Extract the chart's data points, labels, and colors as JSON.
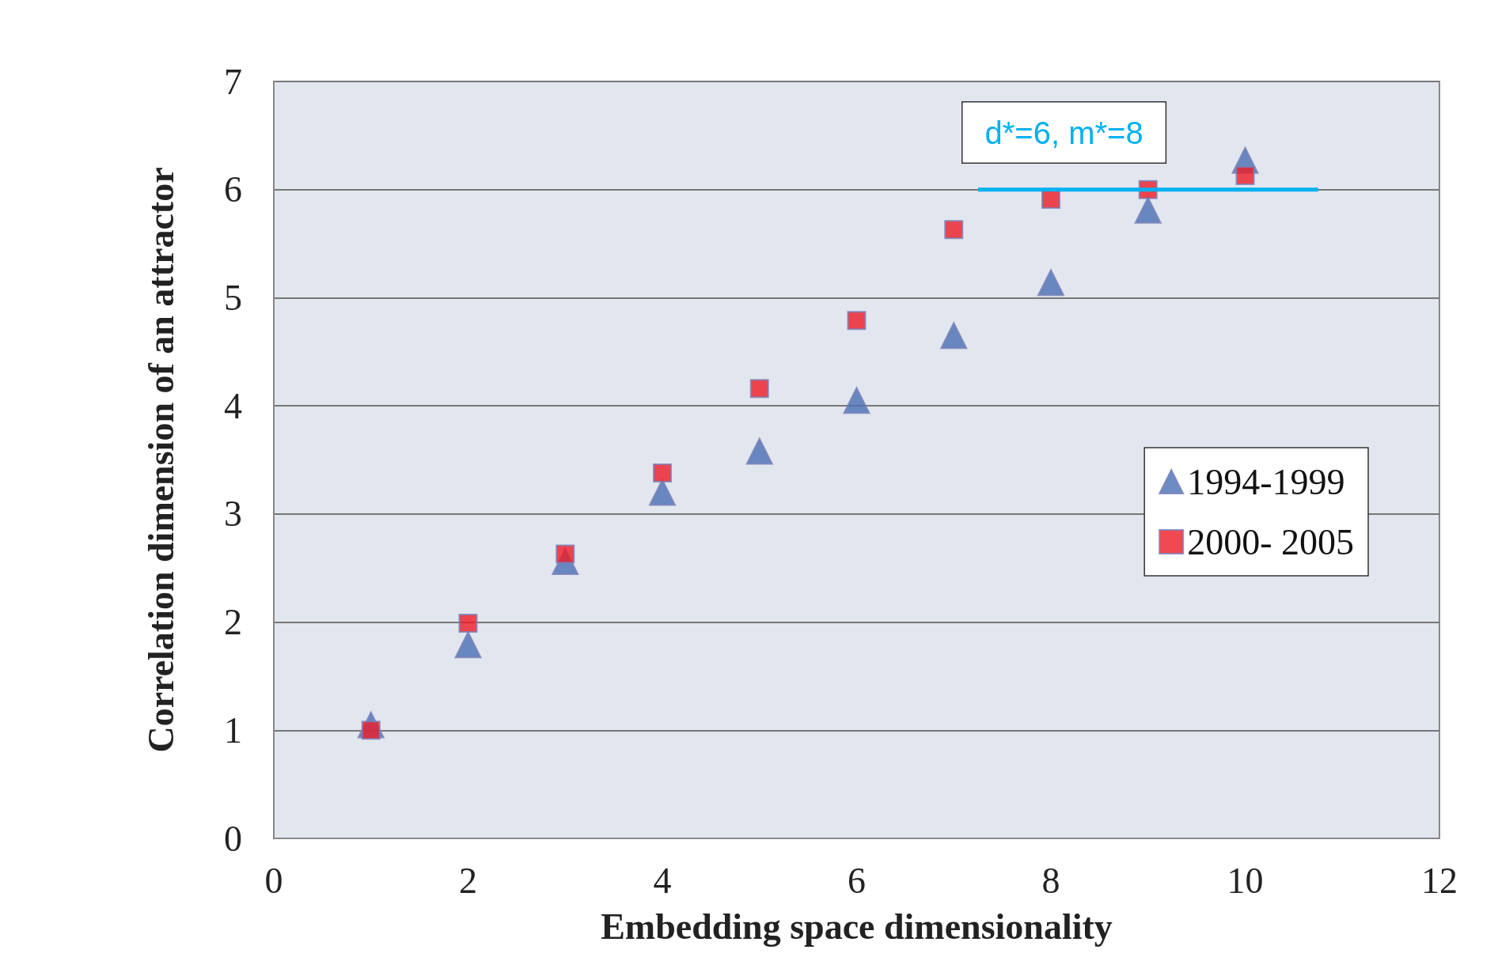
{
  "chart_data": {
    "type": "scatter",
    "xlabel": "Embedding space dimensionality",
    "ylabel": "Correlation dimension of an attractor",
    "xlim": [
      0,
      12
    ],
    "xticks": [
      0,
      2,
      4,
      6,
      8,
      10,
      12
    ],
    "ylim": [
      0,
      7
    ],
    "yticks": [
      0,
      1,
      2,
      3,
      4,
      5,
      6,
      7
    ],
    "x": [
      1,
      2,
      3,
      4,
      5,
      6,
      7,
      8,
      9,
      10
    ],
    "grid": "y",
    "legend": "right",
    "annotations": [
      "d*=6, m*=8"
    ],
    "series": [
      {
        "name": "1994-1999",
        "color": "#4a6fb5",
        "marker": "triangle",
        "values": [
          1.05,
          1.79,
          2.56,
          3.2,
          3.58,
          4.05,
          4.65,
          5.14,
          5.81,
          6.27
        ]
      },
      {
        "name": "2000- 2005",
        "color": "#ee1c25",
        "marker": "square",
        "values": [
          1.0,
          1.99,
          2.63,
          3.38,
          4.16,
          4.79,
          5.63,
          5.91,
          6.0,
          6.13
        ]
      },
      {
        "type": "line",
        "color": "#00b0f0",
        "marker": "none",
        "x": [
          7.25,
          10.75
        ],
        "values": [
          6,
          6
        ]
      }
    ]
  }
}
